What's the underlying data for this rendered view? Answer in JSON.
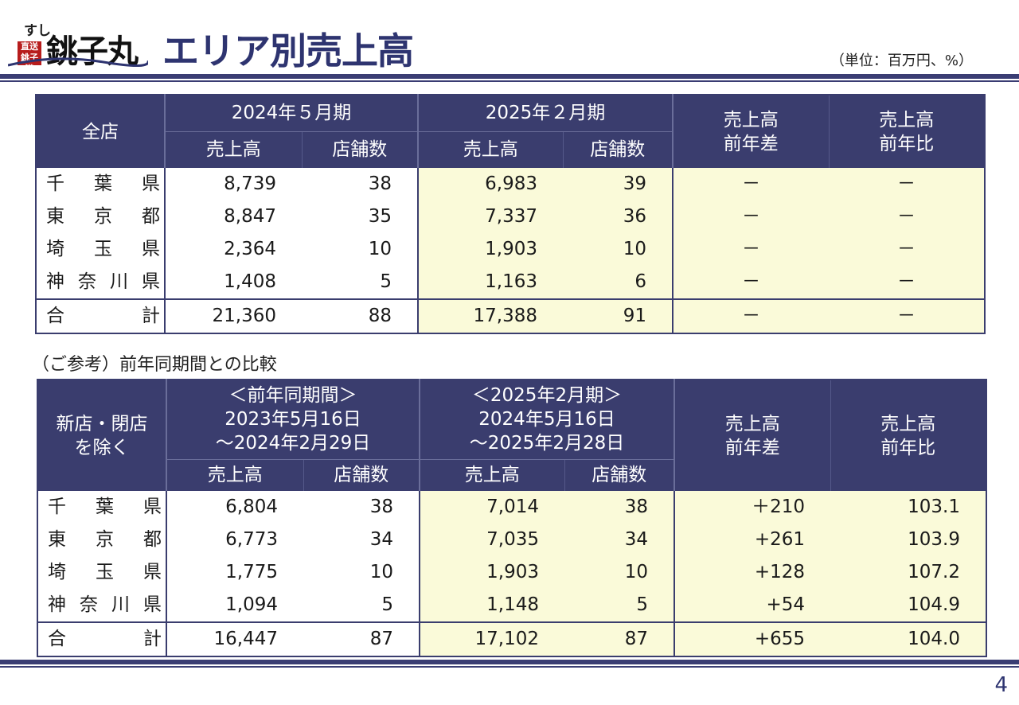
{
  "header": {
    "logo_small": "すし",
    "logo_seal": "直送銚子港",
    "logo_main": "銚子丸",
    "title": "エリア別売上高",
    "unit": "（単位：百万円、%）"
  },
  "page_number": "4",
  "colors": {
    "header_bg": "#3a3d6e",
    "highlight_bg": "#fafad9",
    "title": "#2e3470"
  },
  "table1": {
    "corner": "全店",
    "period1": "2024年５月期",
    "period2": "2025年２月期",
    "diff_header": [
      "売上高",
      "前年差"
    ],
    "ratio_header": [
      "売上高",
      "前年比"
    ],
    "sub_sales": "売上高",
    "sub_stores": "店舗数",
    "rows": [
      {
        "area": [
          "千",
          "葉",
          "県"
        ],
        "s1": "8,739",
        "c1": "38",
        "s2": "6,983",
        "c2": "39",
        "diff": "－",
        "ratio": "－"
      },
      {
        "area": [
          "東",
          "京",
          "都"
        ],
        "s1": "8,847",
        "c1": "35",
        "s2": "7,337",
        "c2": "36",
        "diff": "－",
        "ratio": "－"
      },
      {
        "area": [
          "埼",
          "玉",
          "県"
        ],
        "s1": "2,364",
        "c1": "10",
        "s2": "1,903",
        "c2": "10",
        "diff": "－",
        "ratio": "－"
      },
      {
        "area": [
          "神",
          "奈",
          "川",
          "県"
        ],
        "s1": "1,408",
        "c1": "5",
        "s2": "1,163",
        "c2": "6",
        "diff": "－",
        "ratio": "－"
      }
    ],
    "total": {
      "area": [
        "合",
        "計"
      ],
      "s1": "21,360",
      "c1": "88",
      "s2": "17,388",
      "c2": "91",
      "diff": "－",
      "ratio": "－"
    }
  },
  "note": "（ご参考）前年同期間との比較",
  "table2": {
    "corner": [
      "新店・閉店",
      "を除く"
    ],
    "period1": [
      "＜前年同期間＞",
      "2023年5月16日",
      "～2024年2月29日"
    ],
    "period2": [
      "＜2025年2月期＞",
      "2024年5月16日",
      "～2025年2月28日"
    ],
    "diff_header": [
      "売上高",
      "前年差"
    ],
    "ratio_header": [
      "売上高",
      "前年比"
    ],
    "sub_sales": "売上高",
    "sub_stores": "店舗数",
    "rows": [
      {
        "area": [
          "千",
          "葉",
          "県"
        ],
        "s1": "6,804",
        "c1": "38",
        "s2": "7,014",
        "c2": "38",
        "diff": "＋210",
        "ratio": "103.1"
      },
      {
        "area": [
          "東",
          "京",
          "都"
        ],
        "s1": "6,773",
        "c1": "34",
        "s2": "7,035",
        "c2": "34",
        "diff": "+261",
        "ratio": "103.9"
      },
      {
        "area": [
          "埼",
          "玉",
          "県"
        ],
        "s1": "1,775",
        "c1": "10",
        "s2": "1,903",
        "c2": "10",
        "diff": "+128",
        "ratio": "107.2"
      },
      {
        "area": [
          "神",
          "奈",
          "川",
          "県"
        ],
        "s1": "1,094",
        "c1": "5",
        "s2": "1,148",
        "c2": "5",
        "diff": "+54",
        "ratio": "104.9"
      }
    ],
    "total": {
      "area": [
        "合",
        "計"
      ],
      "s1": "16,447",
      "c1": "87",
      "s2": "17,102",
      "c2": "87",
      "diff": "+655",
      "ratio": "104.0"
    }
  }
}
